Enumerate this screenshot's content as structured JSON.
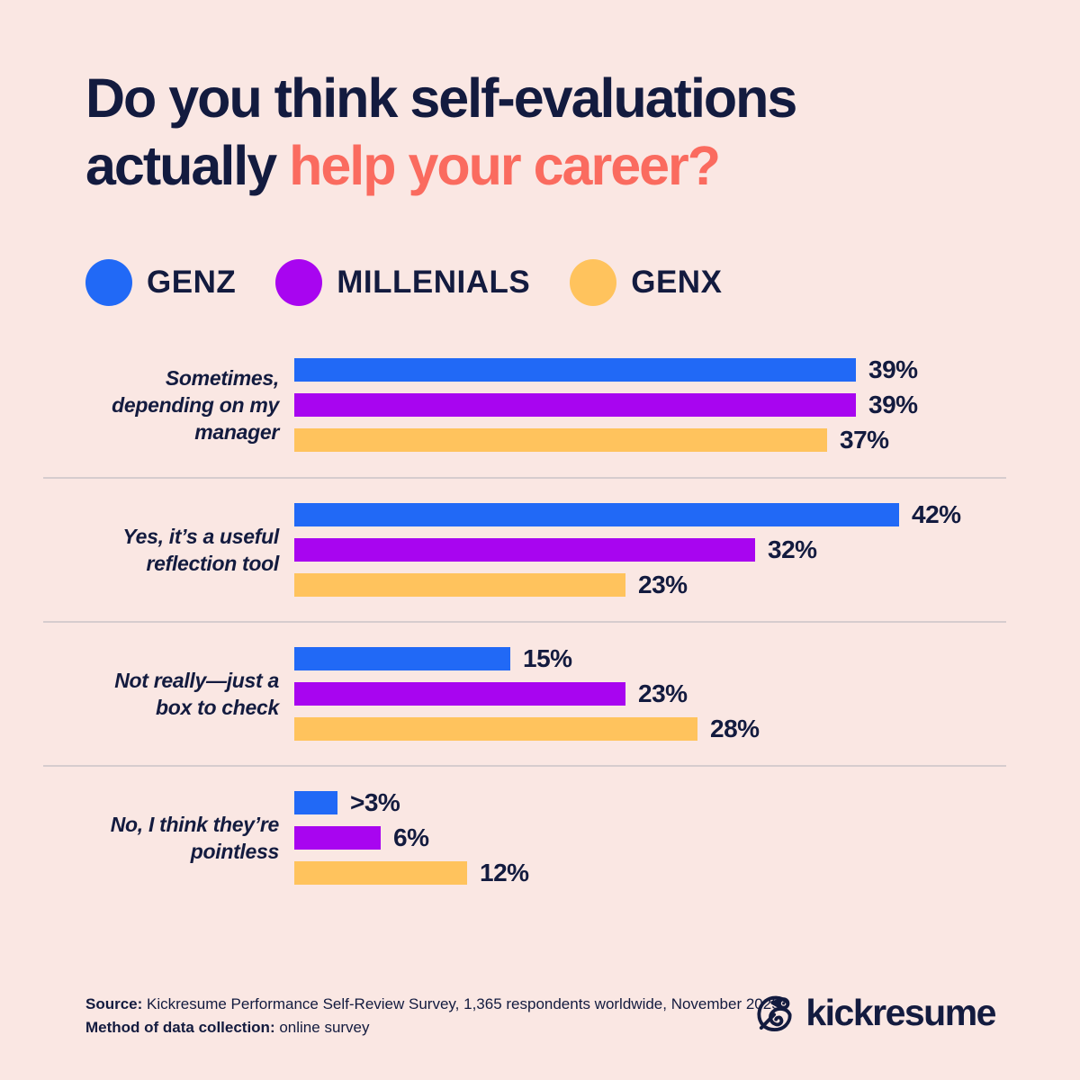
{
  "page": {
    "background_color": "#FAE7E3",
    "text_color": "#131B3F",
    "divider_color": "#D6CCCE"
  },
  "title": {
    "line1": "Do you think self-evaluations",
    "line2_plain": "actually",
    "line2_accent": "help your career?",
    "accent_color": "#FA6B5F"
  },
  "legend": {
    "items": [
      {
        "label": "GENZ",
        "color": "#2169F6"
      },
      {
        "label": "MILLENIALS",
        "color": "#A805F0"
      },
      {
        "label": "GENX",
        "color": "#FFC35D"
      }
    ]
  },
  "chart_data": {
    "type": "bar",
    "orientation": "horizontal",
    "unit": "%",
    "xlim": [
      0,
      45
    ],
    "grid": false,
    "legend_position": "top",
    "title": "Do you think self-evaluations actually help your career?",
    "categories": [
      "Sometimes, depending on my manager",
      "Yes, it’s a useful reflection tool",
      "Not really—just a box to check",
      "No, I think they’re pointless"
    ],
    "category_label_lines": [
      [
        "Sometimes,",
        "depending on my",
        "manager"
      ],
      [
        "Yes, it’s a useful",
        "reflection tool"
      ],
      [
        "Not really—just a",
        "box to check"
      ],
      [
        "No, I think they’re",
        "pointless"
      ]
    ],
    "series": [
      {
        "name": "GENZ",
        "color": "#2169F6",
        "values": [
          39,
          42,
          15,
          3
        ],
        "value_labels": [
          "39%",
          "42%",
          "15%",
          ">3%"
        ]
      },
      {
        "name": "MILLENIALS",
        "color": "#A805F0",
        "values": [
          39,
          32,
          23,
          6
        ],
        "value_labels": [
          "39%",
          "32%",
          "23%",
          "6%"
        ]
      },
      {
        "name": "GENX",
        "color": "#FFC35D",
        "values": [
          37,
          23,
          28,
          12
        ],
        "value_labels": [
          "37%",
          "23%",
          "28%",
          "12%"
        ]
      }
    ]
  },
  "footer": {
    "source_label": "Source:",
    "source_text": "Kickresume Performance Self-Review Survey, 1,365 respondents worldwide, November 2025",
    "method_label": "Method of data collection:",
    "method_text": "online survey",
    "brand_name": "kickresume"
  }
}
